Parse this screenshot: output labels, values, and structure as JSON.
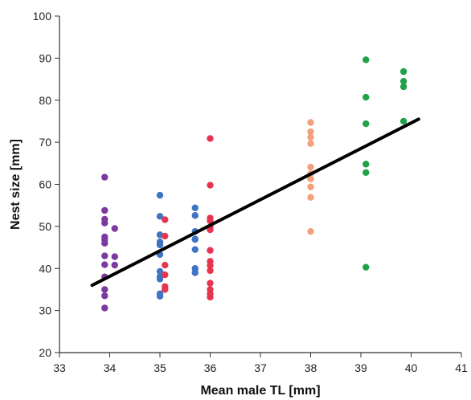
{
  "chart_data": {
    "type": "scatter",
    "title": "",
    "xlabel": "Mean male TL [mm]",
    "ylabel": "Nest size [mm]",
    "xlim": [
      33,
      41
    ],
    "ylim": [
      20,
      100
    ],
    "x_ticks": [
      33,
      34,
      35,
      36,
      37,
      38,
      39,
      40,
      41
    ],
    "y_ticks": [
      20,
      30,
      40,
      50,
      60,
      70,
      80,
      90,
      100
    ],
    "grid": false,
    "legend": "none",
    "series": [
      {
        "color": "#7b3aa0",
        "points": [
          [
            33.9,
            61.7
          ],
          [
            33.9,
            53.8
          ],
          [
            33.9,
            51.7
          ],
          [
            33.9,
            50.8
          ],
          [
            33.9,
            47.5
          ],
          [
            33.9,
            46.8
          ],
          [
            33.9,
            46.0
          ],
          [
            33.9,
            43.0
          ],
          [
            33.9,
            40.9
          ],
          [
            33.9,
            38.0
          ],
          [
            33.9,
            35.0
          ],
          [
            33.9,
            33.5
          ],
          [
            33.9,
            30.6
          ],
          [
            34.1,
            49.5
          ],
          [
            34.1,
            42.8
          ],
          [
            34.1,
            40.8
          ]
        ]
      },
      {
        "color": "#3f74c2",
        "points": [
          [
            35.0,
            57.4
          ],
          [
            35.0,
            52.4
          ],
          [
            35.0,
            48.0
          ],
          [
            35.0,
            46.3
          ],
          [
            35.0,
            45.6
          ],
          [
            35.0,
            43.3
          ],
          [
            35.0,
            39.3
          ],
          [
            35.0,
            38.0
          ],
          [
            35.0,
            37.5
          ],
          [
            35.0,
            34.0
          ],
          [
            35.0,
            33.4
          ],
          [
            35.7,
            54.4
          ],
          [
            35.7,
            52.6
          ],
          [
            35.7,
            48.8
          ],
          [
            35.7,
            47.0
          ],
          [
            35.7,
            46.9
          ],
          [
            35.7,
            44.5
          ],
          [
            35.7,
            40.0
          ],
          [
            35.7,
            39.0
          ]
        ]
      },
      {
        "color": "#e5354f",
        "points": [
          [
            35.1,
            51.6
          ],
          [
            35.1,
            47.7
          ],
          [
            35.1,
            40.8
          ],
          [
            35.1,
            38.5
          ],
          [
            35.1,
            35.7
          ],
          [
            35.1,
            35.0
          ],
          [
            36.0,
            70.9
          ],
          [
            36.0,
            59.8
          ],
          [
            36.0,
            52.0
          ],
          [
            36.0,
            51.3
          ],
          [
            36.0,
            49.8
          ],
          [
            36.0,
            49.2
          ],
          [
            36.0,
            44.3
          ],
          [
            36.0,
            41.7
          ],
          [
            36.0,
            40.7
          ],
          [
            36.0,
            39.5
          ],
          [
            36.0,
            36.5
          ],
          [
            36.0,
            35.0
          ],
          [
            36.0,
            34.0
          ],
          [
            36.0,
            33.2
          ]
        ]
      },
      {
        "color": "#f4a07c",
        "points": [
          [
            38.0,
            74.7
          ],
          [
            38.0,
            72.5
          ],
          [
            38.0,
            71.2
          ],
          [
            38.0,
            69.7
          ],
          [
            38.0,
            64.1
          ],
          [
            38.0,
            62.5
          ],
          [
            38.0,
            61.3
          ],
          [
            38.0,
            59.4
          ],
          [
            38.0,
            56.9
          ],
          [
            38.0,
            48.8
          ]
        ]
      },
      {
        "color": "#1fa24a",
        "points": [
          [
            39.1,
            89.6
          ],
          [
            39.1,
            80.7
          ],
          [
            39.1,
            74.4
          ],
          [
            39.1,
            64.8
          ],
          [
            39.1,
            62.8
          ],
          [
            39.1,
            40.3
          ],
          [
            39.85,
            86.8
          ],
          [
            39.85,
            84.5
          ],
          [
            39.85,
            83.2
          ],
          [
            39.85,
            75.0
          ]
        ]
      }
    ],
    "regression_line": {
      "x": [
        33.65,
        40.15
      ],
      "y": [
        36.0,
        75.5
      ]
    }
  }
}
